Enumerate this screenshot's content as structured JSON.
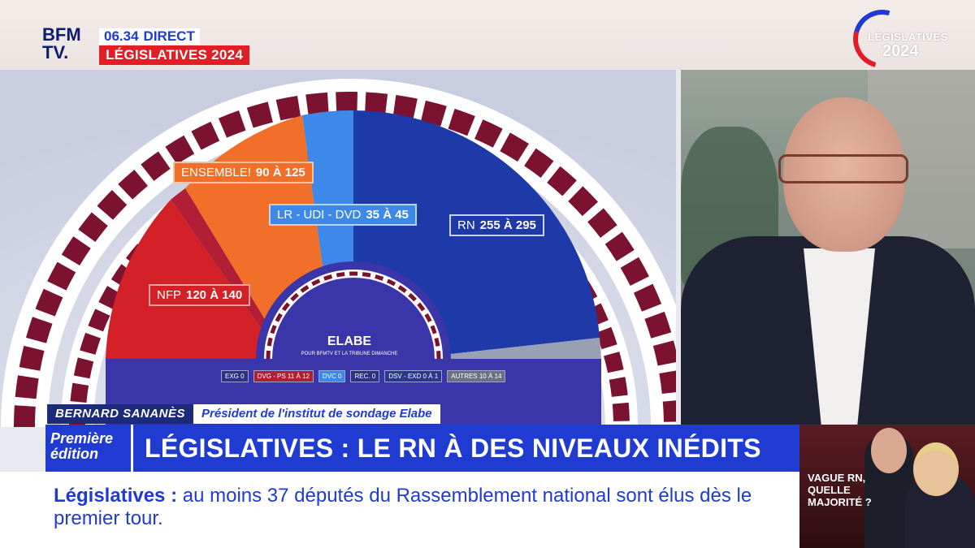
{
  "channel": {
    "logo_line1": "BFM",
    "logo_line2": "TV.",
    "time": "06.34",
    "live": "DIRECT",
    "event": "LÉGISLATIVES 2024"
  },
  "badge": {
    "line1": "LÉGISLATIVES",
    "line2": "2024"
  },
  "chart": {
    "source": "ELABE",
    "source_sub": "POUR BFMTV ET LA TRIBUNE DIMANCHE",
    "labels": [
      {
        "party": "ENSEMBLE!",
        "range": "90 À 125"
      },
      {
        "party": "LR - UDI - DVD",
        "range": "35 À 45"
      },
      {
        "party": "RN",
        "range": "255 À 295"
      },
      {
        "party": "NFP",
        "range": "120 À 140"
      }
    ],
    "legend": [
      "EXG 0",
      "DVG - PS 11 À 12",
      "DVC 0",
      "REC. 0",
      "DSV - EXD 0 À 1",
      "AUTRES 10 À 14"
    ],
    "colors": {
      "nfp": "#d42027",
      "dvg": "#b21e36",
      "ensemble": "#f26f2a",
      "lr": "#3d88e8",
      "rn": "#1e3aa8",
      "autres": "#9aa0b4"
    }
  },
  "lower_third": {
    "name": "BERNARD SANANÈS",
    "role": "Président de l'institut de sondage Elabe",
    "edition_line1": "Première",
    "edition_line2": "édition",
    "headline": "LÉGISLATIVES : LE RN À DES NIVEAUX INÉDITS"
  },
  "ticker": {
    "bold": "Législatives :",
    "text": "au moins 37 députés du Rassemblement national sont élus dès le premier tour."
  },
  "promo": {
    "line1": "VAGUE RN,",
    "line2": "QUELLE",
    "line3": "MAJORITÉ ?"
  }
}
